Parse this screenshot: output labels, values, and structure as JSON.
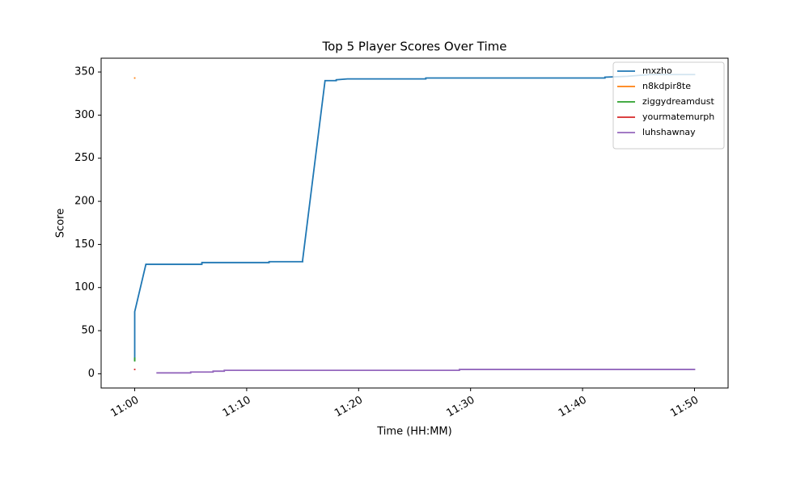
{
  "chart_data": {
    "type": "line",
    "title": "Top 5 Player Scores Over Time",
    "xlabel": "Time (HH:MM)",
    "ylabel": "Score",
    "xlim": [
      "10:57",
      "11:53"
    ],
    "ylim": [
      -16.5,
      366
    ],
    "xticks": [
      "11:00",
      "11:10",
      "11:20",
      "11:30",
      "11:40",
      "11:50"
    ],
    "yticks": [
      0,
      50,
      100,
      150,
      200,
      250,
      300,
      350
    ],
    "legend": "upper right",
    "series": [
      {
        "name": "mxzho",
        "color": "#1f77b4",
        "x": [
          "11:00",
          "11:00",
          "11:01",
          "11:06",
          "11:06",
          "11:12",
          "11:12",
          "11:15",
          "11:15",
          "11:17",
          "11:18",
          "11:18",
          "11:19",
          "11:26",
          "11:26",
          "11:42",
          "11:42",
          "11:44",
          "11:46",
          "11:50"
        ],
        "values": [
          16,
          72,
          127,
          127,
          129,
          129,
          130,
          130,
          132,
          340,
          340,
          341,
          342,
          342,
          343,
          343,
          344,
          345,
          347,
          347
        ]
      },
      {
        "name": "n8kdpir8te",
        "color": "#ff7f0e",
        "x": [
          "11:00",
          "11:00"
        ],
        "values": [
          343,
          343
        ]
      },
      {
        "name": "ziggydreamdust",
        "color": "#2ca02c",
        "x": [
          "11:00",
          "11:00"
        ],
        "values": [
          18,
          15
        ]
      },
      {
        "name": "yourmatemurph",
        "color": "#d62728",
        "x": [
          "11:00",
          "11:00"
        ],
        "values": [
          5,
          5
        ]
      },
      {
        "name": "luhshawnay",
        "color": "#9467bd",
        "x": [
          "11:02",
          "11:05",
          "11:05",
          "11:07",
          "11:07",
          "11:08",
          "11:08",
          "11:29",
          "11:29",
          "11:50"
        ],
        "values": [
          1,
          1,
          2,
          2,
          3,
          3,
          4,
          4,
          5,
          5
        ]
      }
    ]
  }
}
